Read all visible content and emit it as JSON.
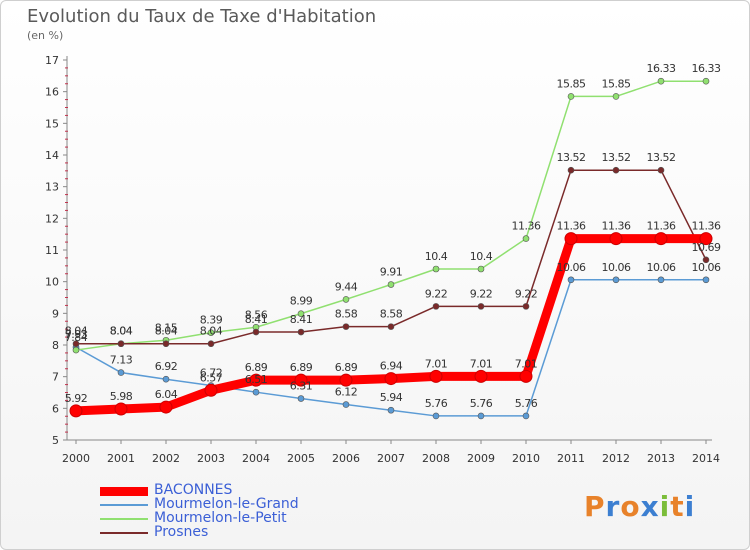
{
  "header": {
    "title": "Evolution du Taux de Taxe d'Habitation",
    "unit": "(en %)"
  },
  "brand": {
    "letters": [
      "P",
      "r",
      "o",
      "x",
      "i",
      "t",
      "i"
    ],
    "colors": [
      "#e8822a",
      "#3c7fd1",
      "#e8822a",
      "#3c7fd1",
      "#7bbd3a",
      "#e8822a",
      "#3c7fd1"
    ]
  },
  "chart_data": {
    "type": "line",
    "title": "Evolution du Taux de Taxe d'Habitation",
    "ylabel": "(en %)",
    "xlabel": "",
    "x": [
      "2000",
      "2001",
      "2002",
      "2003",
      "2004",
      "2005",
      "2006",
      "2007",
      "2008",
      "2009",
      "2010",
      "2011",
      "2012",
      "2013",
      "2014"
    ],
    "ylim": [
      5,
      17
    ],
    "yticks": [
      "5",
      "6",
      "7",
      "8",
      "9",
      "10",
      "11",
      "12",
      "13",
      "14",
      "15",
      "16",
      "17"
    ],
    "grid": false,
    "legend_position": "bottom-left",
    "series": [
      {
        "name": "BACONNES",
        "color": "#ff0000",
        "values": [
          5.92,
          5.98,
          6.04,
          6.57,
          6.89,
          6.89,
          6.89,
          6.94,
          7.01,
          7.01,
          7.01,
          11.36,
          11.36,
          11.36,
          11.36
        ],
        "labels": [
          "5.92",
          "5.98",
          "6.04",
          "6.57",
          "6.89",
          "6.89",
          "6.89",
          "6.94",
          "7.01",
          "7.01",
          "7.01",
          "11.36",
          "11.36",
          "11.36",
          "11.36"
        ]
      },
      {
        "name": "Mourmelon-le-Grand",
        "color": "#5b9bd5",
        "values": [
          7.93,
          7.13,
          6.92,
          6.72,
          6.51,
          6.31,
          6.12,
          5.94,
          5.76,
          5.76,
          5.76,
          10.06,
          10.06,
          10.06,
          10.06
        ],
        "labels": [
          "7.93",
          "7.13",
          "6.92",
          "6.72",
          "6.51",
          "6.31",
          "6.12",
          "5.94",
          "5.76",
          "5.76",
          "5.76",
          "10.06",
          "10.06",
          "10.06",
          "10.06"
        ]
      },
      {
        "name": "Mourmelon-le-Petit",
        "color": "#90e070",
        "values": [
          7.84,
          8.04,
          8.15,
          8.39,
          8.56,
          8.99,
          9.44,
          9.91,
          10.4,
          10.4,
          11.36,
          15.85,
          15.85,
          16.33,
          16.33
        ],
        "labels": [
          "7.84",
          "8.04",
          "8.15",
          "8.39",
          "8.56",
          "8.99",
          "9.44",
          "9.91",
          "10.4",
          "10.4",
          "11.36",
          "15.85",
          "15.85",
          "16.33",
          "16.33"
        ]
      },
      {
        "name": "Prosnes",
        "color": "#7a2a2a",
        "values": [
          8.04,
          8.04,
          8.04,
          8.04,
          8.41,
          8.41,
          8.58,
          8.58,
          9.22,
          9.22,
          9.22,
          13.52,
          13.52,
          13.52,
          10.69
        ],
        "labels": [
          "8.04",
          "8.04",
          "8.04",
          "8.04",
          "8.41",
          "8.41",
          "8.58",
          "8.58",
          "9.22",
          "9.22",
          "9.22",
          "13.52",
          "13.52",
          "13.52",
          "10.69"
        ]
      }
    ]
  }
}
